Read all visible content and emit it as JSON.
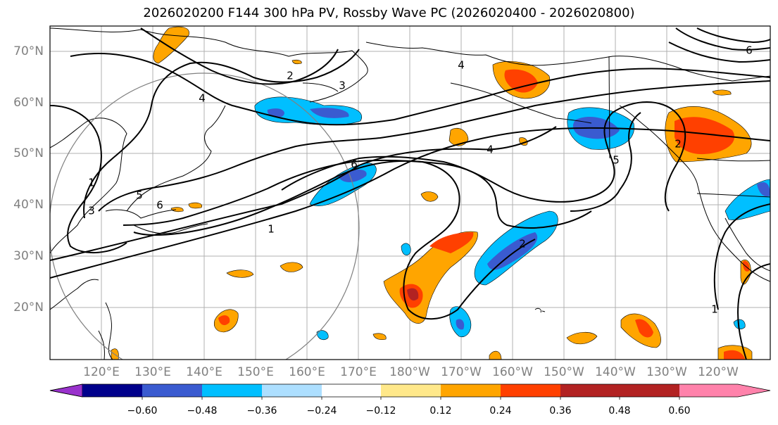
{
  "title": "2026020200 F144 300 hPa PV, Rossby Wave PC (2026020400 - 2026020800)",
  "lat_labels": [
    "70°N",
    "60°N",
    "50°N",
    "40°N",
    "30°N",
    "20°N"
  ],
  "lon_labels": [
    "120°E",
    "130°E",
    "140°E",
    "150°E",
    "160°E",
    "170°E",
    "180°W",
    "170°W",
    "160°W",
    "150°W",
    "140°W",
    "130°W",
    "120°W"
  ],
  "contour_labels": [
    "1",
    "2",
    "3",
    "4",
    "6",
    "6",
    "5",
    "1",
    "4",
    "2",
    "5",
    "1",
    "6",
    "4",
    "3",
    "2"
  ],
  "colorbar": {
    "ticks": [
      "−0.60",
      "−0.48",
      "−0.36",
      "−0.24",
      "−0.12",
      "0.12",
      "0.24",
      "0.36",
      "0.48",
      "0.60"
    ],
    "colors": [
      "#9932CC",
      "#00008B",
      "#3A5BD0",
      "#00BFFF",
      "#ADDFFF",
      "#FFFFFF",
      "#FFE88A",
      "#FFA500",
      "#FF4000",
      "#B22222",
      "#FF82AB"
    ]
  }
}
